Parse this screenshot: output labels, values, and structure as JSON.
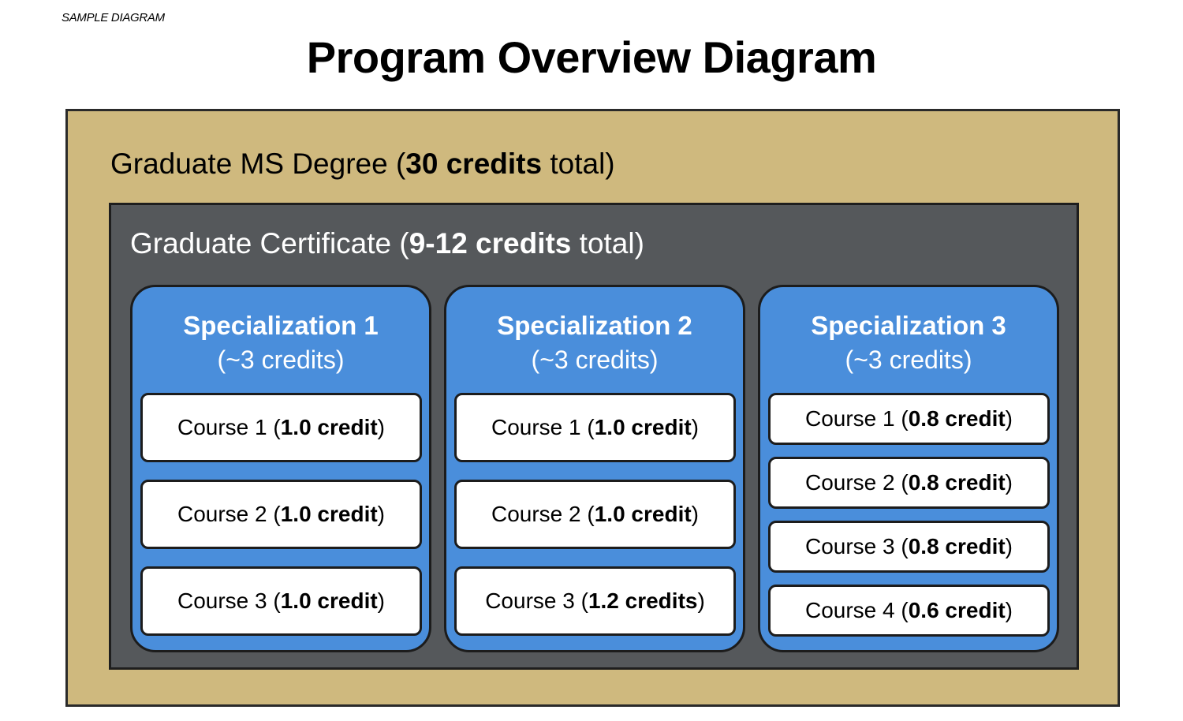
{
  "sample_label": "SAMPLE DIAGRAM",
  "title": "Program Overview Diagram",
  "colors": {
    "degree_fill": "#cfb97e",
    "certificate_fill": "#55585b",
    "specialization_fill": "#4a8edb",
    "course_fill": "#ffffff"
  },
  "degree": {
    "name": "Graduate MS Degree",
    "open": " (",
    "credits": "30 credits",
    "close": " total)"
  },
  "certificate": {
    "name": "Graduate Certificate",
    "open": " (",
    "credits": "9-12 credits",
    "close": " total)"
  },
  "specializations": [
    {
      "name": "Specialization 1",
      "credits": "(~3 credits)",
      "courses": [
        {
          "name": "Course 1",
          "credit": "1.0 credit"
        },
        {
          "name": "Course 2",
          "credit": "1.0 credit"
        },
        {
          "name": "Course 3",
          "credit": "1.0 credit"
        }
      ]
    },
    {
      "name": "Specialization 2",
      "credits": "(~3 credits)",
      "courses": [
        {
          "name": "Course 1",
          "credit": "1.0 credit"
        },
        {
          "name": "Course 2",
          "credit": "1.0 credit"
        },
        {
          "name": "Course 3",
          "credit": "1.2 credits"
        }
      ]
    },
    {
      "name": "Specialization 3",
      "credits": "(~3 credits)",
      "courses": [
        {
          "name": "Course 1",
          "credit": "0.8 credit"
        },
        {
          "name": "Course 2",
          "credit": "0.8 credit"
        },
        {
          "name": "Course 3",
          "credit": "0.8 credit"
        },
        {
          "name": "Course 4",
          "credit": "0.6 credit"
        }
      ]
    }
  ]
}
